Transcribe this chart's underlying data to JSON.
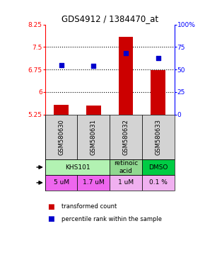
{
  "title": "GDS4912 / 1384470_at",
  "samples": [
    "GSM580630",
    "GSM580631",
    "GSM580632",
    "GSM580633"
  ],
  "bar_values": [
    5.58,
    5.55,
    7.83,
    6.73
  ],
  "bar_base": 5.25,
  "percentile_values": [
    55,
    54,
    68,
    63
  ],
  "ylim_left": [
    5.25,
    8.25
  ],
  "ylim_right": [
    0,
    100
  ],
  "yticks_left": [
    5.25,
    6.0,
    6.75,
    7.5,
    8.25
  ],
  "ytick_labels_left": [
    "5.25",
    "6",
    "6.75",
    "7.5",
    "8.25"
  ],
  "yticks_right": [
    0,
    25,
    50,
    75,
    100
  ],
  "ytick_labels_right": [
    "0",
    "25",
    "50",
    "75",
    "100%"
  ],
  "hlines": [
    7.5,
    6.75,
    6.0
  ],
  "bar_color": "#cc0000",
  "dot_color": "#0000cc",
  "agent_groups": [
    {
      "start": 0,
      "end": 1,
      "label": "KHS101",
      "color": "#b2f2b2"
    },
    {
      "start": 2,
      "end": 2,
      "label": "retinoic\nacid",
      "color": "#90d890"
    },
    {
      "start": 3,
      "end": 3,
      "label": "DMSO",
      "color": "#00cc44"
    }
  ],
  "dose_labels": [
    "5 uM",
    "1.7 uM",
    "1 uM",
    "0.1 %"
  ],
  "dose_colors": [
    "#ee66ee",
    "#ee66ee",
    "#f0b0f0",
    "#f0b0f0"
  ],
  "sample_bg_color": "#d3d3d3",
  "legend_bar_color": "#cc0000",
  "legend_dot_color": "#0000cc"
}
